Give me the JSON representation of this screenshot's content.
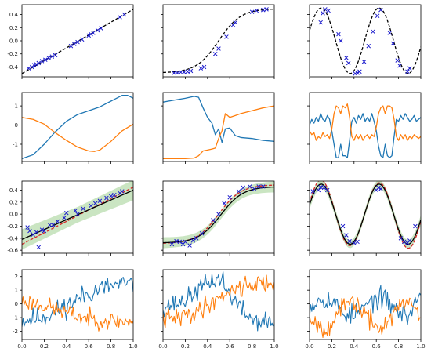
{
  "colors": {
    "blue": "#1f77b4",
    "orange": "#ff7f0e",
    "black": "#000000",
    "red": "#d62728",
    "marker": "#1a1acc",
    "band": "#b8dcae"
  },
  "chart_data": [
    {
      "type": "scatter",
      "id": "r0c0",
      "xlim": [
        0,
        1
      ],
      "ylim": [
        -0.55,
        0.55
      ],
      "yticks": [
        "0.4",
        "0.2",
        "0.0",
        "-0.2",
        "-0.4"
      ],
      "ytick_values": [
        0.4,
        0.2,
        0.0,
        -0.2,
        -0.4
      ],
      "xticks": [],
      "xtick_values": [
        0,
        0.2,
        0.4,
        0.6,
        0.8,
        1.0
      ],
      "series": [
        {
          "kind": "line",
          "style": "dashed",
          "color": "black",
          "fn": "linear"
        },
        {
          "kind": "markers",
          "color": "marker",
          "x": [
            0.06,
            0.09,
            0.11,
            0.13,
            0.15,
            0.18,
            0.21,
            0.24,
            0.27,
            0.3,
            0.44,
            0.47,
            0.5,
            0.54,
            0.6,
            0.62,
            0.64,
            0.68,
            0.71,
            0.88,
            0.92
          ],
          "y": [
            -0.42,
            -0.4,
            -0.37,
            -0.36,
            -0.34,
            -0.31,
            -0.29,
            -0.26,
            -0.24,
            -0.22,
            -0.08,
            -0.05,
            -0.02,
            0.02,
            0.08,
            0.1,
            0.12,
            0.16,
            0.19,
            0.36,
            0.4
          ]
        }
      ]
    },
    {
      "type": "scatter",
      "id": "r0c1",
      "xlim": [
        0,
        1
      ],
      "ylim": [
        -0.55,
        0.55
      ],
      "yticks": [],
      "ytick_values": [
        0.4,
        0.2,
        0.0,
        -0.2,
        -0.4
      ],
      "xticks": [],
      "xtick_values": [
        0,
        0.2,
        0.4,
        0.6,
        0.8,
        1.0
      ],
      "series": [
        {
          "kind": "line",
          "style": "dashed",
          "color": "black",
          "fn": "sigmoid"
        },
        {
          "kind": "markers",
          "color": "marker",
          "x": [
            0.1,
            0.13,
            0.16,
            0.19,
            0.22,
            0.25,
            0.34,
            0.37,
            0.47,
            0.5,
            0.57,
            0.63,
            0.65,
            0.8,
            0.84,
            0.9,
            0.93
          ],
          "y": [
            -0.49,
            -0.49,
            -0.48,
            -0.48,
            -0.47,
            -0.46,
            -0.42,
            -0.4,
            -0.2,
            -0.12,
            0.06,
            0.24,
            0.28,
            0.44,
            0.46,
            0.47,
            0.48
          ]
        }
      ]
    },
    {
      "type": "scatter",
      "id": "r0c2",
      "xlim": [
        0,
        1
      ],
      "ylim": [
        -0.55,
        0.55
      ],
      "yticks": [],
      "ytick_values": [
        0.4,
        0.2,
        0.0,
        -0.2,
        -0.4
      ],
      "xticks": [],
      "xtick_values": [
        0,
        0.2,
        0.4,
        0.6,
        0.8,
        1.0
      ],
      "series": [
        {
          "kind": "line",
          "style": "dashed",
          "color": "black",
          "fn": "sine"
        },
        {
          "kind": "markers",
          "color": "marker",
          "x": [
            0.1,
            0.12,
            0.14,
            0.17,
            0.26,
            0.28,
            0.33,
            0.35,
            0.41,
            0.43,
            0.45,
            0.49,
            0.53,
            0.57,
            0.61,
            0.64,
            0.72,
            0.75,
            0.79,
            0.81,
            0.88,
            0.9
          ],
          "y": [
            0.28,
            0.42,
            0.48,
            0.46,
            0.1,
            0.0,
            -0.26,
            -0.34,
            -0.5,
            -0.49,
            -0.47,
            -0.32,
            -0.08,
            0.14,
            0.38,
            0.47,
            0.12,
            -0.04,
            -0.3,
            -0.38,
            -0.47,
            -0.42
          ]
        }
      ]
    },
    {
      "type": "line",
      "id": "r1c0",
      "xlim": [
        0,
        1
      ],
      "ylim": [
        -1.9,
        1.7
      ],
      "yticks": [
        "1",
        "0",
        "-1"
      ],
      "ytick_values": [
        1,
        0,
        -1
      ],
      "xticks": [],
      "xtick_values": [
        0,
        0.2,
        0.4,
        0.6,
        0.8,
        1.0
      ],
      "series": [
        {
          "kind": "line",
          "color": "blue",
          "x": [
            0,
            0.1,
            0.2,
            0.3,
            0.4,
            0.5,
            0.6,
            0.7,
            0.8,
            0.9,
            0.95,
            1.0
          ],
          "y": [
            -1.75,
            -1.55,
            -1.0,
            -0.35,
            0.2,
            0.55,
            0.75,
            0.95,
            1.25,
            1.55,
            1.55,
            1.4
          ]
        },
        {
          "kind": "line",
          "color": "orange",
          "x": [
            0,
            0.1,
            0.2,
            0.3,
            0.4,
            0.5,
            0.6,
            0.65,
            0.7,
            0.8,
            0.9,
            1.0
          ],
          "y": [
            0.4,
            0.3,
            0.05,
            -0.4,
            -0.8,
            -1.15,
            -1.35,
            -1.38,
            -1.3,
            -0.85,
            -0.3,
            0.05
          ]
        }
      ]
    },
    {
      "type": "line",
      "id": "r1c1",
      "xlim": [
        0,
        1
      ],
      "ylim": [
        -1.9,
        1.7
      ],
      "yticks": [],
      "ytick_values": [
        1,
        0,
        -1
      ],
      "xticks": [],
      "xtick_values": [
        0,
        0.2,
        0.4,
        0.6,
        0.8,
        1.0
      ],
      "series": [
        {
          "kind": "line",
          "color": "blue",
          "x": [
            0,
            0.1,
            0.2,
            0.28,
            0.32,
            0.36,
            0.4,
            0.44,
            0.47,
            0.5,
            0.53,
            0.56,
            0.6,
            0.65,
            0.7,
            0.8,
            0.9,
            1.0
          ],
          "y": [
            1.2,
            1.3,
            1.4,
            1.5,
            1.45,
            0.9,
            0.4,
            0.1,
            -0.5,
            -0.2,
            -0.9,
            -0.2,
            -0.15,
            -0.55,
            -0.65,
            -0.7,
            -0.8,
            -0.85
          ]
        },
        {
          "kind": "line",
          "color": "orange",
          "x": [
            0,
            0.1,
            0.2,
            0.28,
            0.32,
            0.36,
            0.4,
            0.44,
            0.47,
            0.5,
            0.53,
            0.56,
            0.6,
            0.65,
            0.7,
            0.8,
            0.9,
            1.0
          ],
          "y": [
            -1.75,
            -1.75,
            -1.75,
            -1.72,
            -1.6,
            -1.35,
            -1.3,
            -1.25,
            -1.2,
            -0.7,
            -0.3,
            0.6,
            0.4,
            0.5,
            0.6,
            0.75,
            0.9,
            1.0
          ]
        }
      ]
    },
    {
      "type": "line",
      "id": "r1c2",
      "xlim": [
        0,
        1
      ],
      "ylim": [
        -1.9,
        1.7
      ],
      "yticks": [],
      "ytick_values": [
        1,
        0,
        -1
      ],
      "xticks": [],
      "xtick_values": [
        0,
        0.2,
        0.4,
        0.6,
        0.8,
        1.0
      ],
      "series": [
        {
          "kind": "line",
          "color": "blue",
          "x": [
            0,
            0.02,
            0.04,
            0.06,
            0.08,
            0.1,
            0.12,
            0.14,
            0.16,
            0.18,
            0.2,
            0.22,
            0.24,
            0.26,
            0.28,
            0.3,
            0.32,
            0.34,
            0.36,
            0.38,
            0.4,
            0.42,
            0.44,
            0.46,
            0.48,
            0.5,
            0.52,
            0.54,
            0.56,
            0.58,
            0.6,
            0.62,
            0.64,
            0.66,
            0.68,
            0.7,
            0.72,
            0.74,
            0.76,
            0.78,
            0.8,
            0.82,
            0.84,
            0.86,
            0.88,
            0.9,
            0.92,
            0.94,
            0.96,
            0.98,
            1.0
          ],
          "y": [
            0.0,
            0.3,
            0.1,
            0.4,
            0.2,
            0.6,
            0.3,
            0.2,
            0.5,
            0.3,
            -0.3,
            -1.0,
            -1.7,
            -1.7,
            -1.0,
            -1.6,
            -1.6,
            -1.7,
            -0.8,
            0.2,
            0.4,
            0.1,
            0.5,
            0.3,
            0.6,
            0.2,
            0.4,
            0.2,
            0.6,
            0.2,
            -0.3,
            -1.1,
            -1.6,
            -1.7,
            -1.0,
            -1.6,
            -1.7,
            -1.6,
            -0.6,
            0.3,
            0.2,
            0.5,
            0.3,
            0.6,
            0.4,
            0.2,
            0.3,
            0.5,
            0.2,
            0.3,
            0.4
          ]
        },
        {
          "kind": "line",
          "color": "orange",
          "x": [
            0,
            0.02,
            0.04,
            0.06,
            0.08,
            0.1,
            0.12,
            0.14,
            0.16,
            0.18,
            0.2,
            0.22,
            0.24,
            0.26,
            0.28,
            0.3,
            0.32,
            0.34,
            0.36,
            0.38,
            0.4,
            0.42,
            0.44,
            0.46,
            0.48,
            0.5,
            0.52,
            0.54,
            0.56,
            0.58,
            0.6,
            0.62,
            0.64,
            0.66,
            0.68,
            0.7,
            0.72,
            0.74,
            0.76,
            0.78,
            0.8,
            0.82,
            0.84,
            0.86,
            0.88,
            0.9,
            0.92,
            0.94,
            0.96,
            0.98,
            1.0
          ],
          "y": [
            -0.3,
            -0.5,
            -0.4,
            -0.8,
            -0.6,
            -0.7,
            -0.4,
            -0.6,
            -0.5,
            -0.7,
            -0.2,
            0.6,
            1.0,
            0.9,
            0.6,
            1.0,
            0.9,
            1.1,
            0.4,
            -0.6,
            -0.8,
            -0.5,
            -0.7,
            -0.5,
            -0.8,
            -0.6,
            -0.5,
            -0.7,
            -0.5,
            -0.6,
            -0.1,
            0.6,
            0.9,
            1.0,
            0.6,
            1.0,
            1.0,
            0.9,
            0.3,
            -0.6,
            -0.8,
            -0.5,
            -0.7,
            -0.5,
            -0.8,
            -0.6,
            -0.7,
            -0.5,
            -0.6,
            -0.7,
            -0.6
          ]
        }
      ]
    },
    {
      "type": "scatter",
      "id": "r2c0",
      "xlim": [
        0,
        1
      ],
      "ylim": [
        -0.65,
        0.55
      ],
      "yticks": [
        "0.4",
        "0.2",
        "0.0",
        "-0.2",
        "-0.4",
        "-0.6"
      ],
      "ytick_values": [
        0.4,
        0.2,
        0.0,
        -0.2,
        -0.4,
        -0.6
      ],
      "xticks": [],
      "xtick_values": [
        0,
        0.2,
        0.4,
        0.6,
        0.8,
        1.0
      ],
      "series": [
        {
          "kind": "band",
          "color": "band",
          "fn": "linear_fit",
          "width": 0.13
        },
        {
          "kind": "line",
          "style": "dashed",
          "color": "red",
          "fn": "linear_true"
        },
        {
          "kind": "line",
          "color": "black",
          "fn": "linear_fit"
        },
        {
          "kind": "markers",
          "color": "marker",
          "x": [
            0.05,
            0.07,
            0.1,
            0.13,
            0.15,
            0.18,
            0.2,
            0.25,
            0.28,
            0.32,
            0.38,
            0.4,
            0.48,
            0.5,
            0.55,
            0.62,
            0.66,
            0.7,
            0.76,
            0.8,
            0.83,
            0.88,
            0.9
          ],
          "y": [
            -0.22,
            -0.28,
            -0.34,
            -0.3,
            -0.55,
            -0.26,
            -0.28,
            -0.18,
            -0.18,
            -0.12,
            -0.06,
            0.02,
            0.06,
            0.0,
            0.09,
            0.14,
            0.18,
            0.22,
            0.27,
            0.3,
            0.32,
            0.35,
            0.38
          ]
        }
      ]
    },
    {
      "type": "scatter",
      "id": "r2c1",
      "xlim": [
        0,
        1
      ],
      "ylim": [
        -0.65,
        0.55
      ],
      "yticks": [],
      "ytick_values": [
        0.4,
        0.2,
        0.0,
        -0.2,
        -0.4,
        -0.6
      ],
      "xticks": [],
      "xtick_values": [
        0,
        0.2,
        0.4,
        0.6,
        0.8,
        1.0
      ],
      "series": [
        {
          "kind": "band",
          "color": "band",
          "fn": "sigmoid_fit",
          "width": 0.07
        },
        {
          "kind": "line",
          "style": "dashed",
          "color": "red",
          "fn": "sigmoid"
        },
        {
          "kind": "line",
          "color": "black",
          "fn": "sigmoid_fit"
        },
        {
          "kind": "markers",
          "color": "marker",
          "x": [
            0.08,
            0.12,
            0.15,
            0.18,
            0.2,
            0.24,
            0.27,
            0.3,
            0.35,
            0.45,
            0.5,
            0.55,
            0.6,
            0.68,
            0.72,
            0.78,
            0.82,
            0.86,
            0.9
          ],
          "y": [
            -0.5,
            -0.45,
            -0.46,
            -0.5,
            -0.46,
            -0.52,
            -0.44,
            -0.4,
            -0.32,
            -0.1,
            0.0,
            0.18,
            0.28,
            0.38,
            0.44,
            0.46,
            0.42,
            0.46,
            0.46
          ]
        }
      ]
    },
    {
      "type": "scatter",
      "id": "r2c2",
      "xlim": [
        0,
        1
      ],
      "ylim": [
        -0.65,
        0.55
      ],
      "yticks": [],
      "ytick_values": [
        0.4,
        0.2,
        0.0,
        -0.2,
        -0.4,
        -0.6
      ],
      "xticks": [],
      "xtick_values": [
        0,
        0.2,
        0.4,
        0.6,
        0.8,
        1.0
      ],
      "series": [
        {
          "kind": "band",
          "color": "band",
          "fn": "sine",
          "width": 0.06
        },
        {
          "kind": "line",
          "style": "dashed",
          "color": "red",
          "fn": "sine_true"
        },
        {
          "kind": "line",
          "color": "black",
          "fn": "sine"
        },
        {
          "kind": "markers",
          "color": "marker",
          "x": [
            0.03,
            0.08,
            0.1,
            0.13,
            0.16,
            0.3,
            0.33,
            0.36,
            0.4,
            0.43,
            0.6,
            0.62,
            0.64,
            0.82,
            0.85,
            0.88,
            0.9,
            0.95
          ],
          "y": [
            0.38,
            0.4,
            0.45,
            0.44,
            0.4,
            -0.2,
            -0.35,
            -0.45,
            -0.48,
            -0.46,
            0.4,
            0.44,
            0.42,
            -0.4,
            -0.46,
            -0.48,
            -0.44,
            -0.2
          ]
        }
      ]
    },
    {
      "type": "line",
      "id": "r3c0",
      "xlim": [
        0,
        1
      ],
      "ylim": [
        -2.6,
        2.5
      ],
      "yticks": [
        "2",
        "1",
        "0",
        "-1",
        "-2"
      ],
      "ytick_values": [
        2,
        1,
        0,
        -1,
        -2
      ],
      "xticks": [
        "0.0",
        "0.2",
        "0.4",
        "0.6",
        "0.8",
        "1.0"
      ],
      "xtick_values": [
        0,
        0.2,
        0.4,
        0.6,
        0.8,
        1.0
      ],
      "series": [
        {
          "kind": "noisy",
          "color": "blue",
          "fn": "r3c0_blue",
          "noise": 0.55,
          "seed": 11
        },
        {
          "kind": "noisy",
          "color": "orange",
          "fn": "r3c0_orange",
          "noise": 0.45,
          "seed": 23
        }
      ]
    },
    {
      "type": "line",
      "id": "r3c1",
      "xlim": [
        0,
        1
      ],
      "ylim": [
        -2.6,
        2.5
      ],
      "yticks": [],
      "ytick_values": [
        2,
        1,
        0,
        -1,
        -2
      ],
      "xticks": [
        "0.0",
        "0.2",
        "0.4",
        "0.6",
        "0.8",
        "1.0"
      ],
      "xtick_values": [
        0,
        0.2,
        0.4,
        0.6,
        0.8,
        1.0
      ],
      "series": [
        {
          "kind": "noisy",
          "color": "blue",
          "fn": "r3c1_blue",
          "noise": 0.5,
          "seed": 37
        },
        {
          "kind": "noisy",
          "color": "orange",
          "fn": "r3c1_orange",
          "noise": 0.5,
          "seed": 41
        }
      ]
    },
    {
      "type": "line",
      "id": "r3c2",
      "xlim": [
        0,
        1
      ],
      "ylim": [
        -2.6,
        2.5
      ],
      "yticks": [],
      "ytick_values": [
        2,
        1,
        0,
        -1,
        -2
      ],
      "xticks": [
        "0.0",
        "0.2",
        "0.4",
        "0.6",
        "0.8",
        "1.0"
      ],
      "xtick_values": [
        0,
        0.2,
        0.4,
        0.6,
        0.8,
        1.0
      ],
      "series": [
        {
          "kind": "noisy",
          "color": "blue",
          "fn": "r3c2_blue",
          "noise": 0.55,
          "seed": 53
        },
        {
          "kind": "noisy",
          "color": "orange",
          "fn": "r3c2_orange",
          "noise": 0.5,
          "seed": 67
        }
      ]
    }
  ]
}
